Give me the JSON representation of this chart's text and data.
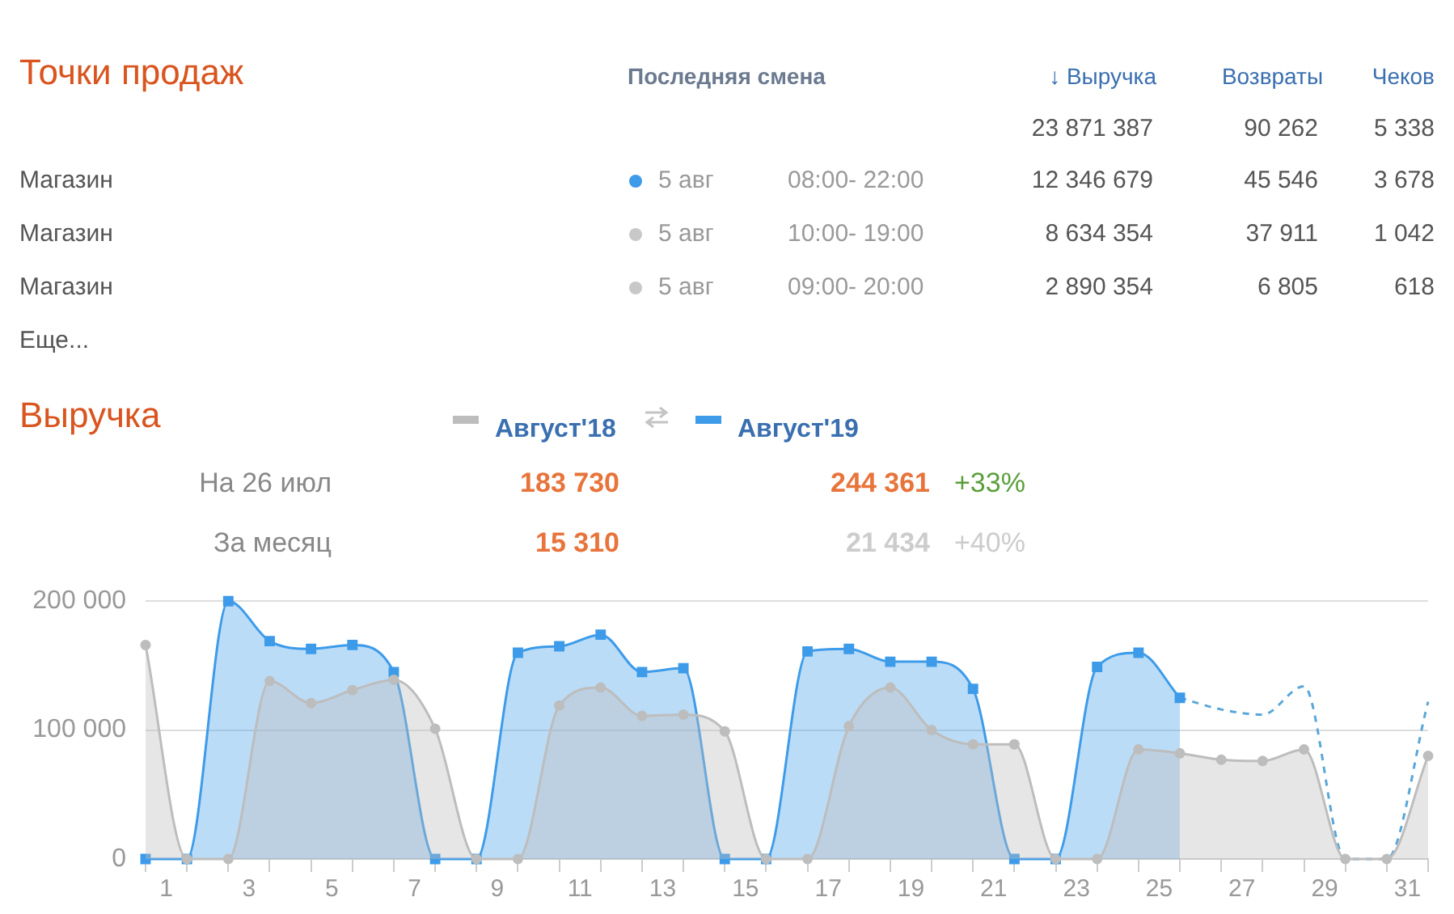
{
  "chart_data": [
    {
      "type": "other",
      "title": "Точки продаж",
      "annotations": [
        "Последняя смена",
        "↓ Выручка",
        "Возвраты",
        "Чеков",
        "23 871 387",
        "90 262",
        "5 338",
        "Магазин",
        "5 авг",
        "08:00- 22:00",
        "12 346 679",
        "45 546",
        "3 678",
        "Магазин",
        "5 авг",
        "10:00- 19:00",
        "8 634 354",
        "37 911",
        "1 042",
        "Магазин",
        "5 авг",
        "09:00- 20:00",
        "2 890 354",
        "6 805",
        "618",
        "Еще..."
      ]
    },
    {
      "type": "area",
      "title": "Выручка",
      "legend": "top",
      "grid": "y",
      "annotations": [
        "На 26 июл",
        "183 730",
        "244 361",
        "+33%",
        "За месяц",
        "15 310",
        "21 434",
        "+40%"
      ],
      "x": [
        0.5,
        1.5,
        2.5,
        3.5,
        4.5,
        5.5,
        6.5,
        7.5,
        8.5,
        9.5,
        10.5,
        11.5,
        12.5,
        13.5,
        14.5,
        15.5,
        16.5,
        17.5,
        18.5,
        19.5,
        20.5,
        21.5,
        22.5,
        23.5,
        24.5,
        25.5,
        26.5,
        27.5,
        28.5,
        29.5,
        30.5,
        31.5
      ],
      "xlim": [
        0.5,
        31.5
      ],
      "xticks": [
        {
          "value": 0.5,
          "label": null
        },
        1,
        {
          "value": 1.5,
          "label": null
        },
        {
          "value": 2.5,
          "label": null
        },
        3,
        {
          "value": 3.5,
          "label": null
        },
        {
          "value": 4.5,
          "label": null
        },
        5,
        {
          "value": 5.5,
          "label": null
        },
        {
          "value": 6.5,
          "label": null
        },
        7,
        {
          "value": 7.5,
          "label": null
        },
        {
          "value": 8.5,
          "label": null
        },
        9,
        {
          "value": 9.5,
          "label": null
        },
        {
          "value": 10.5,
          "label": null
        },
        11,
        {
          "value": 11.5,
          "label": null
        },
        {
          "value": 12.5,
          "label": null
        },
        13,
        {
          "value": 13.5,
          "label": null
        },
        {
          "value": 14.5,
          "label": null
        },
        15,
        {
          "value": 15.5,
          "label": null
        },
        {
          "value": 16.5,
          "label": null
        },
        17,
        {
          "value": 17.5,
          "label": null
        },
        {
          "value": 18.5,
          "label": null
        },
        19,
        {
          "value": 19.5,
          "label": null
        },
        {
          "value": 20.5,
          "label": null
        },
        21,
        {
          "value": 21.5,
          "label": null
        },
        {
          "value": 22.5,
          "label": null
        },
        23,
        {
          "value": 23.5,
          "label": null
        },
        {
          "value": 24.5,
          "label": null
        },
        25,
        {
          "value": 25.5,
          "label": null
        },
        {
          "value": 26.5,
          "label": null
        },
        27,
        {
          "value": 27.5,
          "label": null
        },
        {
          "value": 28.5,
          "label": null
        },
        29,
        {
          "value": 29.5,
          "label": null
        },
        {
          "value": 30.5,
          "label": null
        },
        31,
        {
          "value": 31.5,
          "label": null
        }
      ],
      "ylim": [
        0,
        200000
      ],
      "yticks": [
        0,
        {
          "value": 100000,
          "label": "100 000"
        },
        {
          "value": 200000,
          "label": "200 000"
        }
      ],
      "series": [
        {
          "name": "Август'18",
          "color": "#bdbdbd",
          "marker": "circle",
          "values": [
            166000,
            0,
            0,
            138000,
            121000,
            131000,
            139000,
            101000,
            0,
            0,
            119000,
            133000,
            111000,
            112000,
            99000,
            0,
            0,
            103000,
            133000,
            100000,
            89000,
            89000,
            0,
            0,
            85000,
            82000,
            77000,
            76000,
            85000,
            0,
            0,
            80000
          ]
        },
        {
          "name": "Август'19",
          "color": "#3d9be9",
          "marker": "square",
          "values": [
            0,
            0,
            200000,
            169000,
            163000,
            166000,
            145000,
            0,
            0,
            160000,
            165000,
            174000,
            145000,
            148000,
            0,
            0,
            161000,
            163000,
            153000,
            153000,
            132000,
            0,
            0,
            149000,
            160000,
            125000,
            null,
            null,
            null,
            null,
            null,
            null
          ]
        },
        {
          "type": "line",
          "color": "#5aa7d8",
          "marker": "none",
          "line_style": "dashed",
          "values": [
            null,
            null,
            null,
            null,
            null,
            null,
            null,
            null,
            null,
            null,
            null,
            null,
            null,
            null,
            null,
            null,
            null,
            null,
            null,
            null,
            null,
            null,
            null,
            null,
            null,
            125000,
            116000,
            112000,
            134000,
            0,
            0,
            122000
          ]
        }
      ]
    }
  ]
}
